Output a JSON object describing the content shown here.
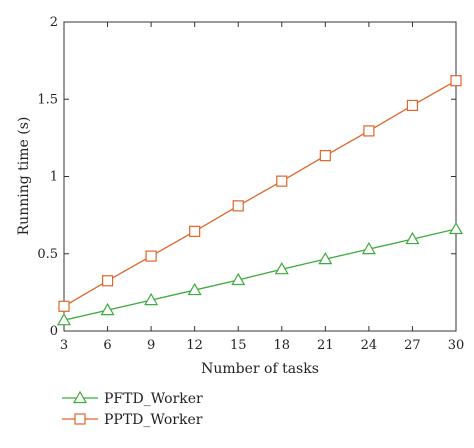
{
  "chart_data": {
    "type": "line",
    "title": "",
    "xlabel": "Number of tasks",
    "ylabel": "Running time (s)",
    "x": [
      3,
      6,
      9,
      12,
      15,
      18,
      21,
      24,
      27,
      30
    ],
    "xlim": [
      3,
      30
    ],
    "ylim": [
      0,
      2
    ],
    "xticks": [
      "3",
      "6",
      "9",
      "12",
      "15",
      "18",
      "21",
      "24",
      "27",
      "30"
    ],
    "yticks": [
      {
        "value": 0,
        "label": "0"
      },
      {
        "value": 0.5,
        "label": "0.5"
      },
      {
        "value": 1,
        "label": "1"
      },
      {
        "value": 1.5,
        "label": "1.5"
      },
      {
        "value": 2,
        "label": "2"
      }
    ],
    "grid": false,
    "legend_position": "bottom-left, below plot",
    "series": [
      {
        "name": "PFTD_Worker",
        "color": "#3faa3f",
        "marker": "triangle",
        "values": [
          0.07,
          0.135,
          0.2,
          0.265,
          0.33,
          0.4,
          0.465,
          0.53,
          0.595,
          0.66
        ]
      },
      {
        "name": "PPTD_Worker",
        "color": "#e0652a",
        "marker": "square",
        "values": [
          0.16,
          0.325,
          0.485,
          0.645,
          0.81,
          0.97,
          1.135,
          1.295,
          1.46,
          1.62
        ]
      }
    ]
  }
}
